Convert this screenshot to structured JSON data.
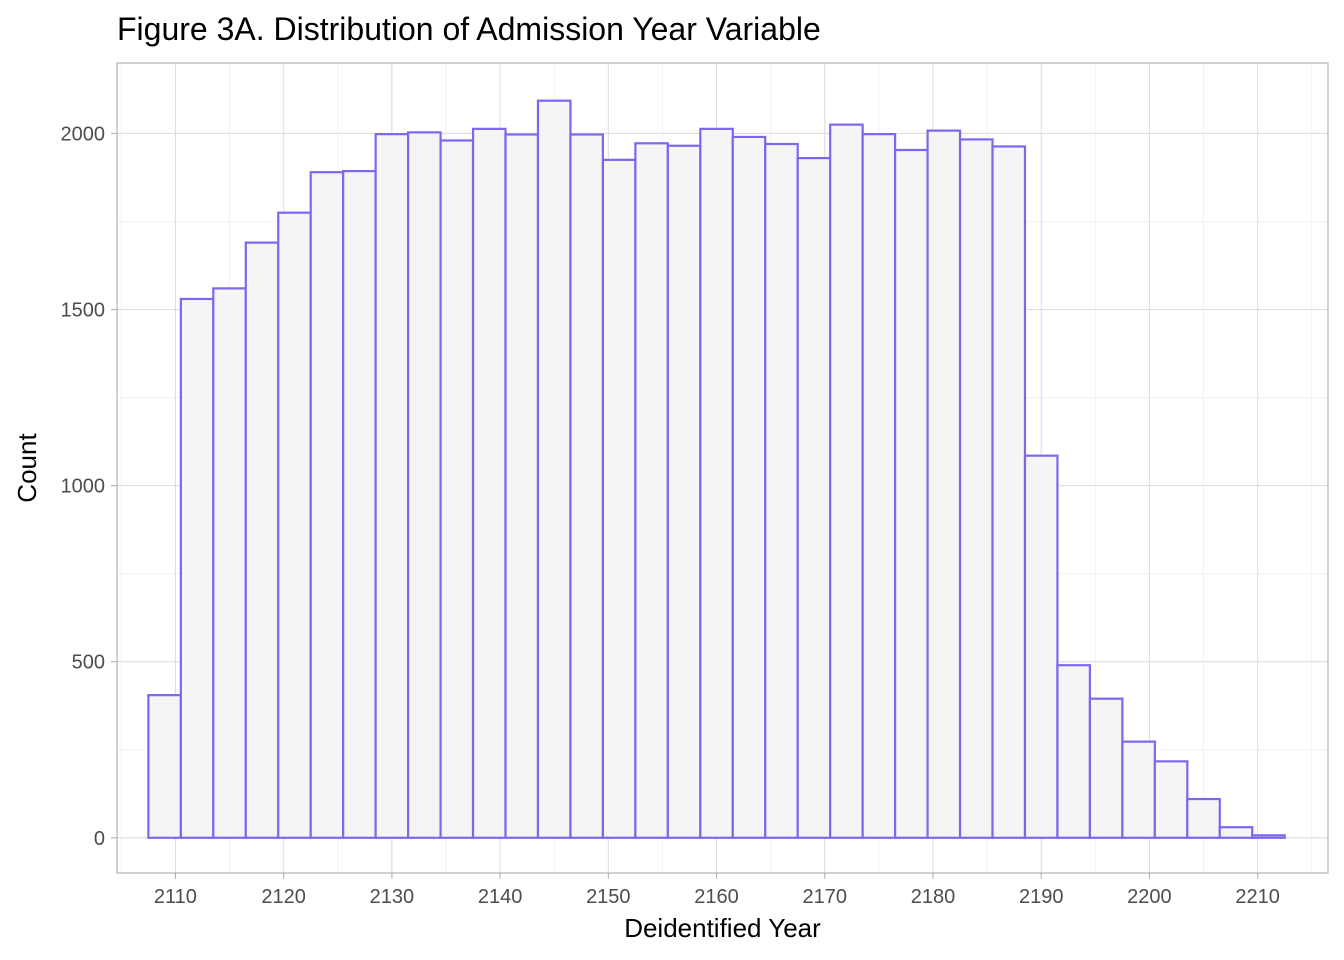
{
  "chart_data": {
    "type": "bar",
    "title": "Figure 3A. Distribution of Admission Year Variable",
    "xlabel": "Deidentified Year",
    "ylabel": "Count",
    "xlim": [
      2104.6,
      2216.5
    ],
    "ylim": [
      -100,
      2200
    ],
    "x_ticks": [
      2110,
      2120,
      2130,
      2140,
      2150,
      2160,
      2170,
      2180,
      2190,
      2200,
      2210
    ],
    "x_tick_labels": [
      "2110",
      "2120",
      "2130",
      "2140",
      "2150",
      "2160",
      "2170",
      "2180",
      "2190",
      "2200",
      "2210"
    ],
    "y_ticks": [
      0,
      500,
      1000,
      1500,
      2000
    ],
    "y_tick_labels": [
      "0",
      "500",
      "1000",
      "1500",
      "2000"
    ],
    "grid": true,
    "bin_edges": [
      2107.5,
      2110.5,
      2113.5,
      2116.5,
      2119.5,
      2122.5,
      2125.5,
      2128.5,
      2131.5,
      2134.5,
      2137.5,
      2140.5,
      2143.5,
      2146.5,
      2149.5,
      2152.5,
      2155.5,
      2158.5,
      2161.5,
      2164.5,
      2167.5,
      2170.5,
      2173.5,
      2176.5,
      2179.5,
      2182.5,
      2185.5,
      2188.5,
      2191.5,
      2194.5,
      2197.5,
      2200.5,
      2203.5,
      2206.5,
      2209.5,
      2212.5
    ],
    "values": [
      405,
      1530,
      1560,
      1690,
      1775,
      1890,
      1893,
      1998,
      2003,
      1980,
      2013,
      1997,
      2093,
      1997,
      1925,
      1972,
      1965,
      2013,
      1990,
      1970,
      1930,
      2025,
      1998,
      1953,
      2008,
      1983,
      1963,
      1085,
      490,
      395,
      273,
      217,
      110,
      30,
      7
    ],
    "colors": {
      "bar_fill": "#f5f5f5",
      "bar_outline": "#7b68ee"
    }
  }
}
